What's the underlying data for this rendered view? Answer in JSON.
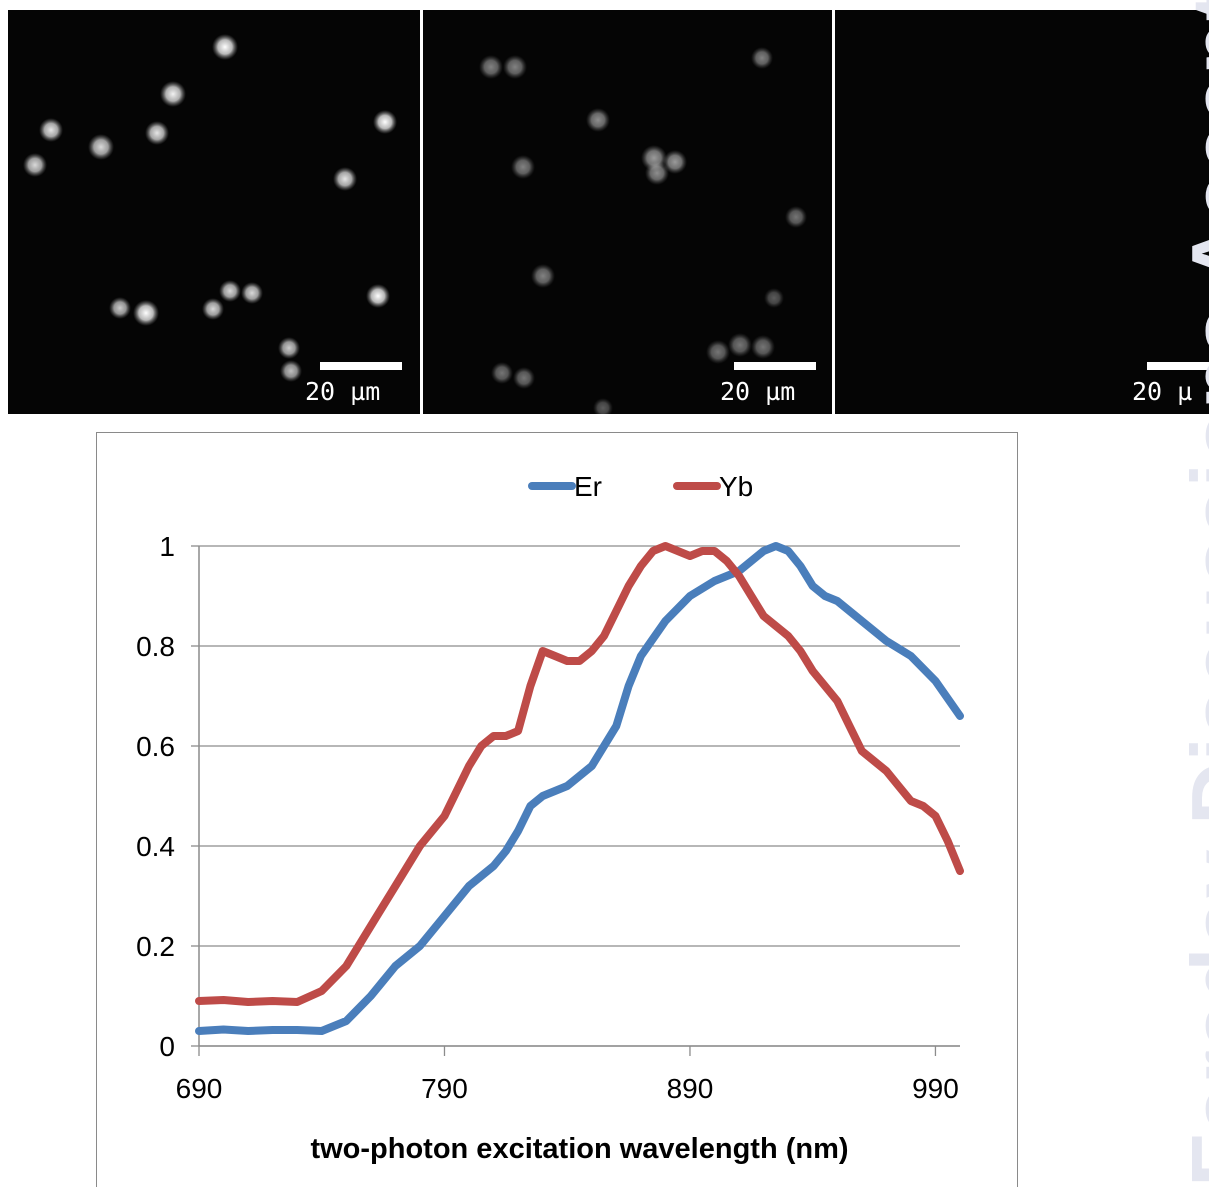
{
  "micrographs": [
    {
      "name": "panel-1",
      "scale_label": "20 µm"
    },
    {
      "name": "panel-2",
      "scale_label": "20 µm"
    },
    {
      "name": "panel-3",
      "scale_label": "20 µ"
    }
  ],
  "watermark": "Faraday Discussions Accepted Manus",
  "chart_data": {
    "type": "line",
    "title": "",
    "xlabel": "two-photon excitation wavelength (nm)",
    "ylabel": "",
    "xlim": [
      690,
      1000
    ],
    "ylim": [
      0,
      1
    ],
    "xticks": [
      "690",
      "790",
      "890",
      "990"
    ],
    "yticks": [
      "0",
      "0.2",
      "0.4",
      "0.6",
      "0.8",
      "1"
    ],
    "legend_position": "top",
    "grid": "horizontal",
    "series": [
      {
        "name": "Er",
        "color": "#4a7ebb",
        "x": [
          690,
          700,
          710,
          720,
          730,
          740,
          750,
          760,
          770,
          780,
          790,
          800,
          810,
          815,
          820,
          825,
          830,
          840,
          850,
          860,
          865,
          870,
          880,
          890,
          900,
          910,
          920,
          925,
          930,
          935,
          940,
          945,
          950,
          960,
          970,
          980,
          990,
          1000
        ],
        "y": [
          0.03,
          0.033,
          0.03,
          0.032,
          0.032,
          0.03,
          0.05,
          0.1,
          0.16,
          0.2,
          0.26,
          0.32,
          0.36,
          0.39,
          0.43,
          0.48,
          0.5,
          0.52,
          0.56,
          0.64,
          0.72,
          0.78,
          0.85,
          0.9,
          0.93,
          0.95,
          0.99,
          1.0,
          0.99,
          0.96,
          0.92,
          0.9,
          0.89,
          0.85,
          0.81,
          0.78,
          0.73,
          0.66
        ]
      },
      {
        "name": "Yb",
        "color": "#be4b48",
        "x": [
          690,
          700,
          710,
          720,
          730,
          740,
          750,
          760,
          770,
          780,
          790,
          800,
          805,
          810,
          815,
          820,
          825,
          830,
          835,
          840,
          845,
          850,
          855,
          860,
          865,
          870,
          875,
          880,
          885,
          890,
          895,
          900,
          905,
          910,
          915,
          920,
          925,
          930,
          935,
          940,
          945,
          950,
          955,
          960,
          965,
          970,
          975,
          980,
          985,
          990,
          995,
          1000
        ],
        "y": [
          0.09,
          0.092,
          0.088,
          0.09,
          0.088,
          0.11,
          0.16,
          0.24,
          0.32,
          0.4,
          0.46,
          0.56,
          0.6,
          0.62,
          0.62,
          0.63,
          0.72,
          0.79,
          0.78,
          0.77,
          0.77,
          0.79,
          0.82,
          0.87,
          0.92,
          0.96,
          0.99,
          1.0,
          0.99,
          0.98,
          0.99,
          0.99,
          0.97,
          0.94,
          0.9,
          0.86,
          0.84,
          0.82,
          0.79,
          0.75,
          0.72,
          0.69,
          0.64,
          0.59,
          0.57,
          0.55,
          0.52,
          0.49,
          0.48,
          0.46,
          0.41,
          0.35
        ]
      }
    ]
  }
}
